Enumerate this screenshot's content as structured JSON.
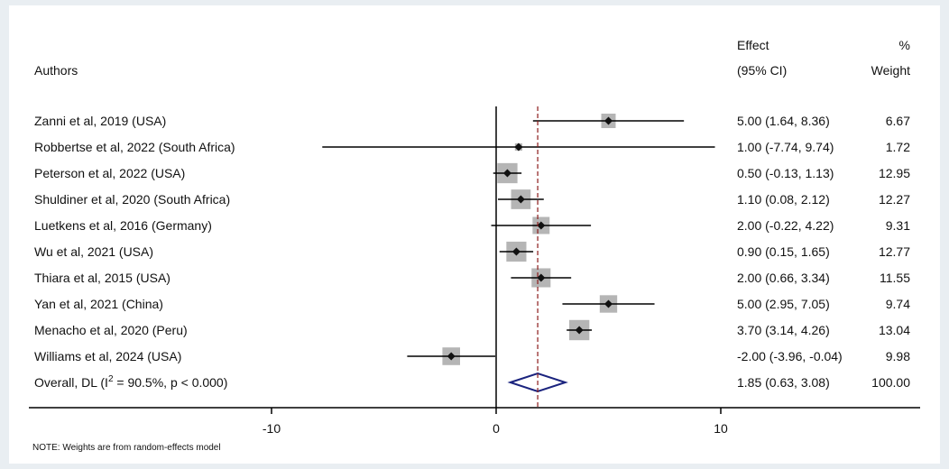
{
  "chart_data": {
    "type": "forest",
    "headers": {
      "authors": "Authors",
      "effect_line1": "Effect",
      "effect_line2": "(95% CI)",
      "weight_line1": "%",
      "weight_line2": "Weight"
    },
    "xticks": [
      -10,
      0,
      10
    ],
    "studies": [
      {
        "label": "Zanni et al, 2019 (USA)",
        "effect": 5.0,
        "lo": 1.64,
        "hi": 8.36,
        "ci_text": "5.00 (1.64, 8.36)",
        "weight": 6.67,
        "weight_text": "6.67"
      },
      {
        "label": "Robbertse et al, 2022 (South Africa)",
        "effect": 1.0,
        "lo": -7.74,
        "hi": 9.74,
        "ci_text": "1.00 (-7.74, 9.74)",
        "weight": 1.72,
        "weight_text": "1.72"
      },
      {
        "label": "Peterson et al, 2022 (USA)",
        "effect": 0.5,
        "lo": -0.13,
        "hi": 1.13,
        "ci_text": "0.50 (-0.13, 1.13)",
        "weight": 12.95,
        "weight_text": "12.95"
      },
      {
        "label": "Shuldiner et al, 2020 (South Africa)",
        "effect": 1.1,
        "lo": 0.08,
        "hi": 2.12,
        "ci_text": "1.10 (0.08, 2.12)",
        "weight": 12.27,
        "weight_text": "12.27"
      },
      {
        "label": "Luetkens et al, 2016 (Germany)",
        "effect": 2.0,
        "lo": -0.22,
        "hi": 4.22,
        "ci_text": "2.00 (-0.22, 4.22)",
        "weight": 9.31,
        "weight_text": "9.31"
      },
      {
        "label": "Wu et al, 2021 (USA)",
        "effect": 0.9,
        "lo": 0.15,
        "hi": 1.65,
        "ci_text": "0.90 (0.15, 1.65)",
        "weight": 12.77,
        "weight_text": "12.77"
      },
      {
        "label": "Thiara et al, 2015 (USA)",
        "effect": 2.0,
        "lo": 0.66,
        "hi": 3.34,
        "ci_text": "2.00 (0.66, 3.34)",
        "weight": 11.55,
        "weight_text": "11.55"
      },
      {
        "label": "Yan et al, 2021 (China)",
        "effect": 5.0,
        "lo": 2.95,
        "hi": 7.05,
        "ci_text": "5.00 (2.95, 7.05)",
        "weight": 9.74,
        "weight_text": "9.74"
      },
      {
        "label": "Menacho et al, 2020 (Peru)",
        "effect": 3.7,
        "lo": 3.14,
        "hi": 4.26,
        "ci_text": "3.70 (3.14, 4.26)",
        "weight": 13.04,
        "weight_text": "13.04"
      },
      {
        "label": "Williams et al, 2024 (USA)",
        "effect": -2.0,
        "lo": -3.96,
        "hi": -0.04,
        "ci_text": "-2.00 (-3.96, -0.04)",
        "weight": 9.98,
        "weight_text": "9.98"
      }
    ],
    "overall": {
      "label_pre": "Overall, DL (I",
      "label_sup": "2",
      "label_post": " = 90.5%, p < 0.000)",
      "effect": 1.85,
      "lo": 0.63,
      "hi": 3.08,
      "ci_text": "1.85 (0.63, 3.08)",
      "weight_text": "100.00"
    },
    "note": "NOTE: Weights are from random-effects model",
    "colors": {
      "box": "#b5b5b5",
      "point": "#111111",
      "line": "#000000",
      "overall_line": "#8b1a1a",
      "diamond": "#1a237e"
    }
  }
}
